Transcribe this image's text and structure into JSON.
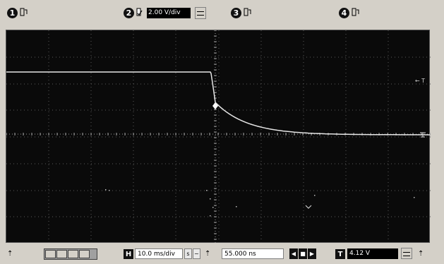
{
  "channels": [
    {
      "number": "1",
      "icon": "channel-off-icon"
    },
    {
      "number": "2",
      "icon": "channel-on-icon",
      "scale": "2.00 V/div"
    },
    {
      "number": "3",
      "icon": "channel-off-icon"
    },
    {
      "number": "4",
      "icon": "channel-off-icon"
    }
  ],
  "screen": {
    "trigger_marker": "T"
  },
  "bottom": {
    "h_label": "H",
    "timebase": "10.0 ms/div",
    "delay": "55.000 ns",
    "t_label": "T",
    "trigger_level": "4.12 V"
  },
  "colors": {
    "trace": "#e6e6e6",
    "grid": "#5a5a5a",
    "screen_bg": "#0a0a0a"
  }
}
